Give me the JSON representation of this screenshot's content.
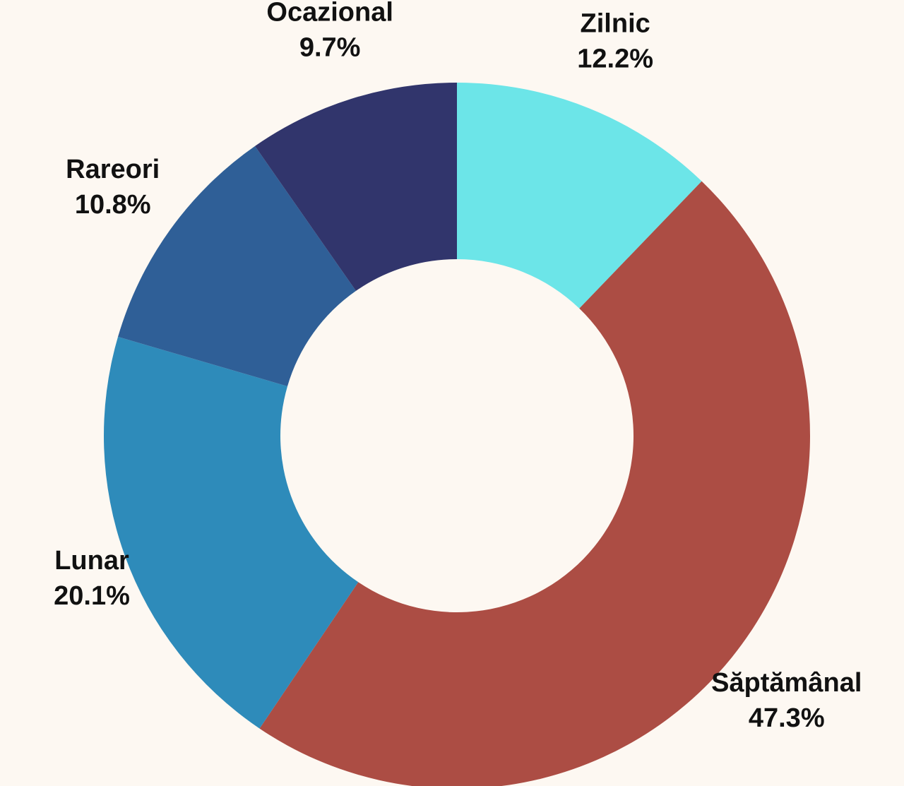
{
  "chart_data": {
    "type": "donut",
    "categories": [
      "Zilnic",
      "Săptămânal",
      "Lunar",
      "Rareori",
      "Ocazional"
    ],
    "values": [
      12.2,
      47.3,
      20.1,
      10.8,
      9.7
    ],
    "value_labels": [
      "12.2%",
      "47.3%",
      "20.1%",
      "10.8%",
      "9.7%"
    ],
    "colors": [
      "#6ce5e8",
      "#ac4d44",
      "#2e8bba",
      "#2f5f97",
      "#31356c"
    ]
  }
}
